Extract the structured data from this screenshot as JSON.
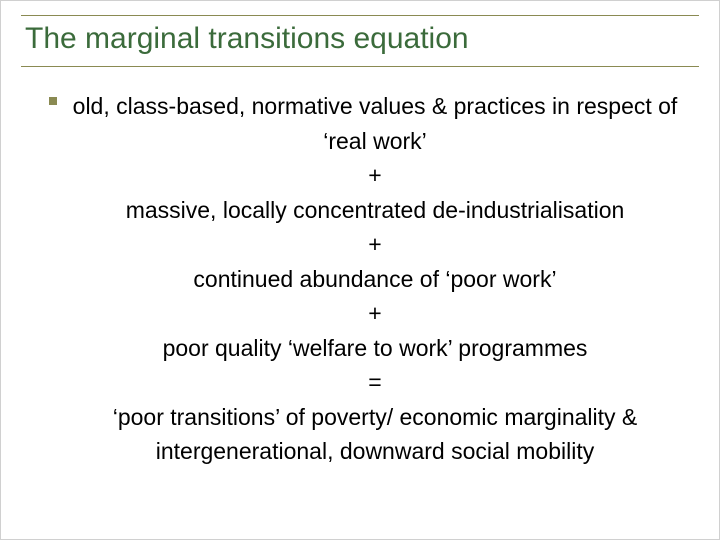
{
  "slide": {
    "title": "The marginal transitions equation",
    "title_color": "#3b6b3b",
    "title_fontsize": 30,
    "rule_color": "#8a8a52",
    "bullet_color": "#8a8a52",
    "body_fontsize": 23,
    "body_color": "#000000",
    "background": "#ffffff",
    "lines": [
      "old, class-based, normative values & practices in respect of ‘real work’",
      "+",
      "massive, locally concentrated de-industrialisation",
      "+",
      "continued abundance of ‘poor work’",
      "+",
      "poor quality ‘welfare to work’ programmes",
      "=",
      "‘poor transitions’ of poverty/ economic marginality & intergenerational, downward social mobility"
    ]
  }
}
